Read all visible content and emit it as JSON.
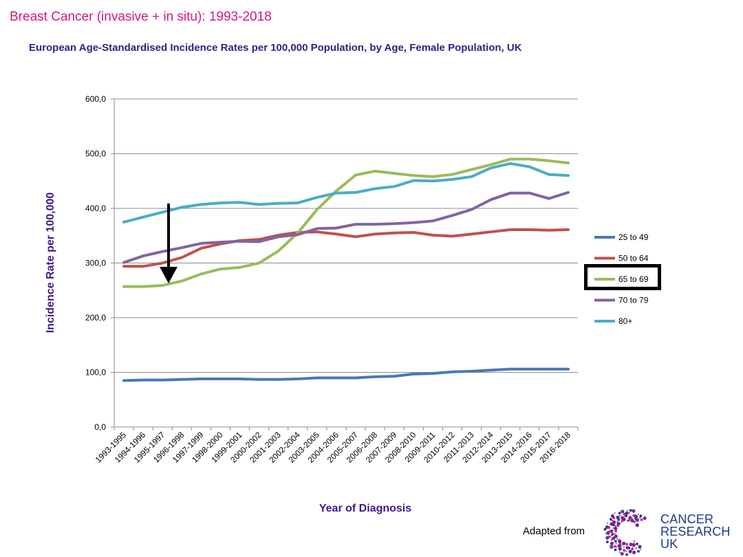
{
  "page": {
    "title": "Breast Cancer (invasive + in situ): 1993-2018",
    "subtitle": "European Age-Standardised Incidence Rates per 100,000 Population, by Age, Female Population, UK",
    "credit": "Adapted from",
    "logo_lines": [
      "CANCER",
      "RESEARCH",
      "UK"
    ]
  },
  "chart_data": {
    "type": "line",
    "xlabel": "Year of Diagnosis",
    "ylabel": "Incidence Rate per 100,000",
    "ylim": [
      0,
      600
    ],
    "yticks": [
      0,
      100,
      200,
      300,
      400,
      500,
      600
    ],
    "ytick_labels": [
      "0,0",
      "100,0",
      "200,0",
      "300,0",
      "400,0",
      "500,0",
      "600,0"
    ],
    "grid": true,
    "legend_position": "right",
    "highlighted_series": "65 to 69",
    "annotation": "arrow pointing down to the 65 to 69 series at 1995-1997",
    "categories": [
      "1993-1995",
      "1994-1996",
      "1995-1997",
      "1996-1998",
      "1997-1999",
      "1998-2000",
      "1999-2001",
      "2000-2002",
      "2001-2003",
      "2002-2004",
      "2003-2005",
      "2004-2006",
      "2005-2007",
      "2006-2008",
      "2007-2009",
      "2008-2010",
      "2009-2011",
      "2010-2012",
      "2011-2013",
      "2012-2014",
      "2013-2015",
      "2014-2016",
      "2015-2017",
      "2016-2018"
    ],
    "series": [
      {
        "name": "25 to 49",
        "color": "#4a78b8",
        "values": [
          85,
          86,
          86,
          87,
          88,
          88,
          88,
          87,
          87,
          88,
          90,
          90,
          90,
          92,
          93,
          97,
          98,
          101,
          102,
          104,
          106,
          106,
          106,
          106
        ]
      },
      {
        "name": "50 to 64",
        "color": "#c0504d",
        "values": [
          294,
          294,
          300,
          310,
          327,
          335,
          341,
          343,
          351,
          356,
          357,
          353,
          348,
          353,
          355,
          356,
          351,
          349,
          353,
          357,
          361,
          361,
          360,
          361
        ]
      },
      {
        "name": "65 to 69",
        "color": "#9bbb59",
        "values": [
          257,
          257,
          259,
          267,
          280,
          289,
          292,
          300,
          322,
          355,
          398,
          432,
          461,
          468,
          464,
          460,
          458,
          462,
          471,
          480,
          490,
          490,
          487,
          483
        ]
      },
      {
        "name": "70 to 79",
        "color": "#8064a2",
        "values": [
          301,
          313,
          321,
          328,
          336,
          338,
          340,
          339,
          348,
          352,
          363,
          364,
          371,
          371,
          372,
          374,
          377,
          387,
          398,
          416,
          428,
          428,
          418,
          429
        ]
      },
      {
        "name": "80+",
        "color": "#4bacc6",
        "values": [
          375,
          384,
          393,
          402,
          407,
          410,
          411,
          407,
          409,
          410,
          420,
          428,
          429,
          436,
          440,
          451,
          450,
          453,
          458,
          474,
          482,
          476,
          462,
          460
        ]
      }
    ]
  }
}
